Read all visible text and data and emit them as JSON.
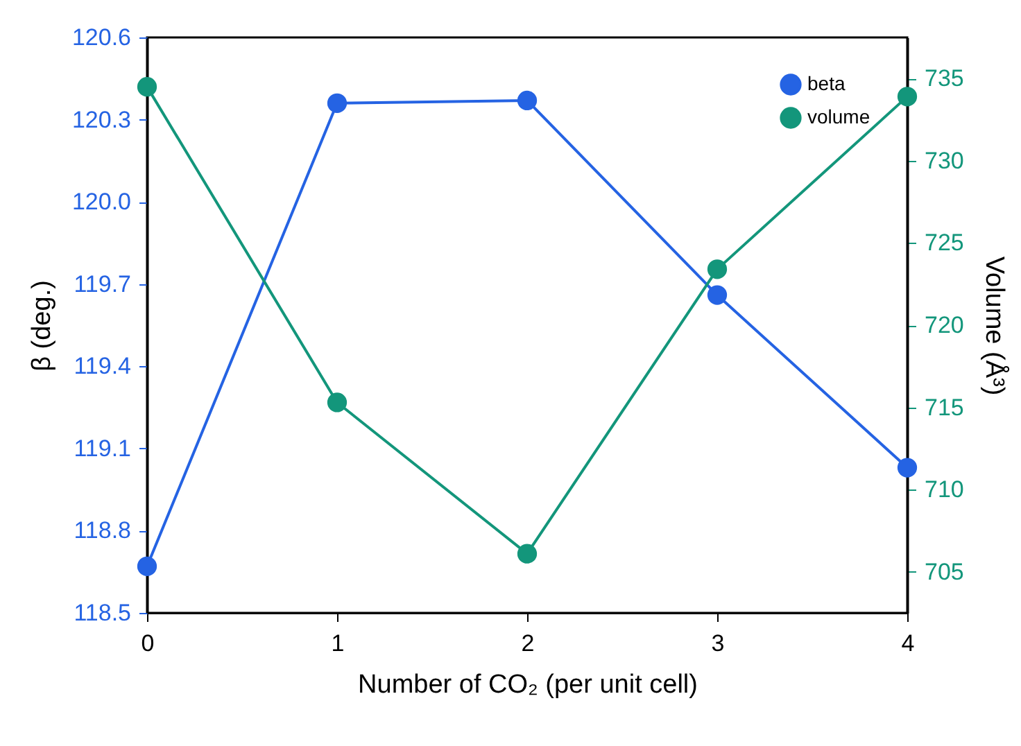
{
  "chart_data": {
    "type": "line",
    "xlabel": "Number of CO₂ (per unit cell)",
    "ylabel": "β (deg.)",
    "y2label": "Volume (Å³)",
    "x": [
      0,
      1,
      2,
      3,
      4
    ],
    "xlim": [
      0,
      4
    ],
    "xticks": [
      0,
      1,
      2,
      3,
      4
    ],
    "ylim": [
      118.5,
      120.6
    ],
    "yticks": [
      {
        "value": 118.5,
        "label": "118.5"
      },
      {
        "value": 118.8,
        "label": "118.8"
      },
      {
        "value": 119.1,
        "label": "119.1"
      },
      {
        "value": 119.4,
        "label": "119.4"
      },
      {
        "value": 119.7,
        "label": "119.7"
      },
      {
        "value": 120.0,
        "label": "120.0"
      },
      {
        "value": 120.3,
        "label": "120.3"
      },
      {
        "value": 120.6,
        "label": "120.6"
      }
    ],
    "y2lim": [
      702.5,
      737.5
    ],
    "y2ticks": [
      705,
      710,
      715,
      720,
      725,
      730,
      735
    ],
    "series": [
      {
        "name": "beta",
        "color": "#2563e3",
        "values": [
          118.67,
          120.36,
          120.37,
          119.66,
          119.03
        ]
      },
      {
        "name": "volume",
        "color": "#13967b",
        "axis": "y2",
        "values": [
          734.5,
          715.3,
          706.1,
          723.4,
          733.9
        ]
      }
    ],
    "marker": "circle",
    "line_style": "solid",
    "legend": "top right",
    "grid": false
  }
}
